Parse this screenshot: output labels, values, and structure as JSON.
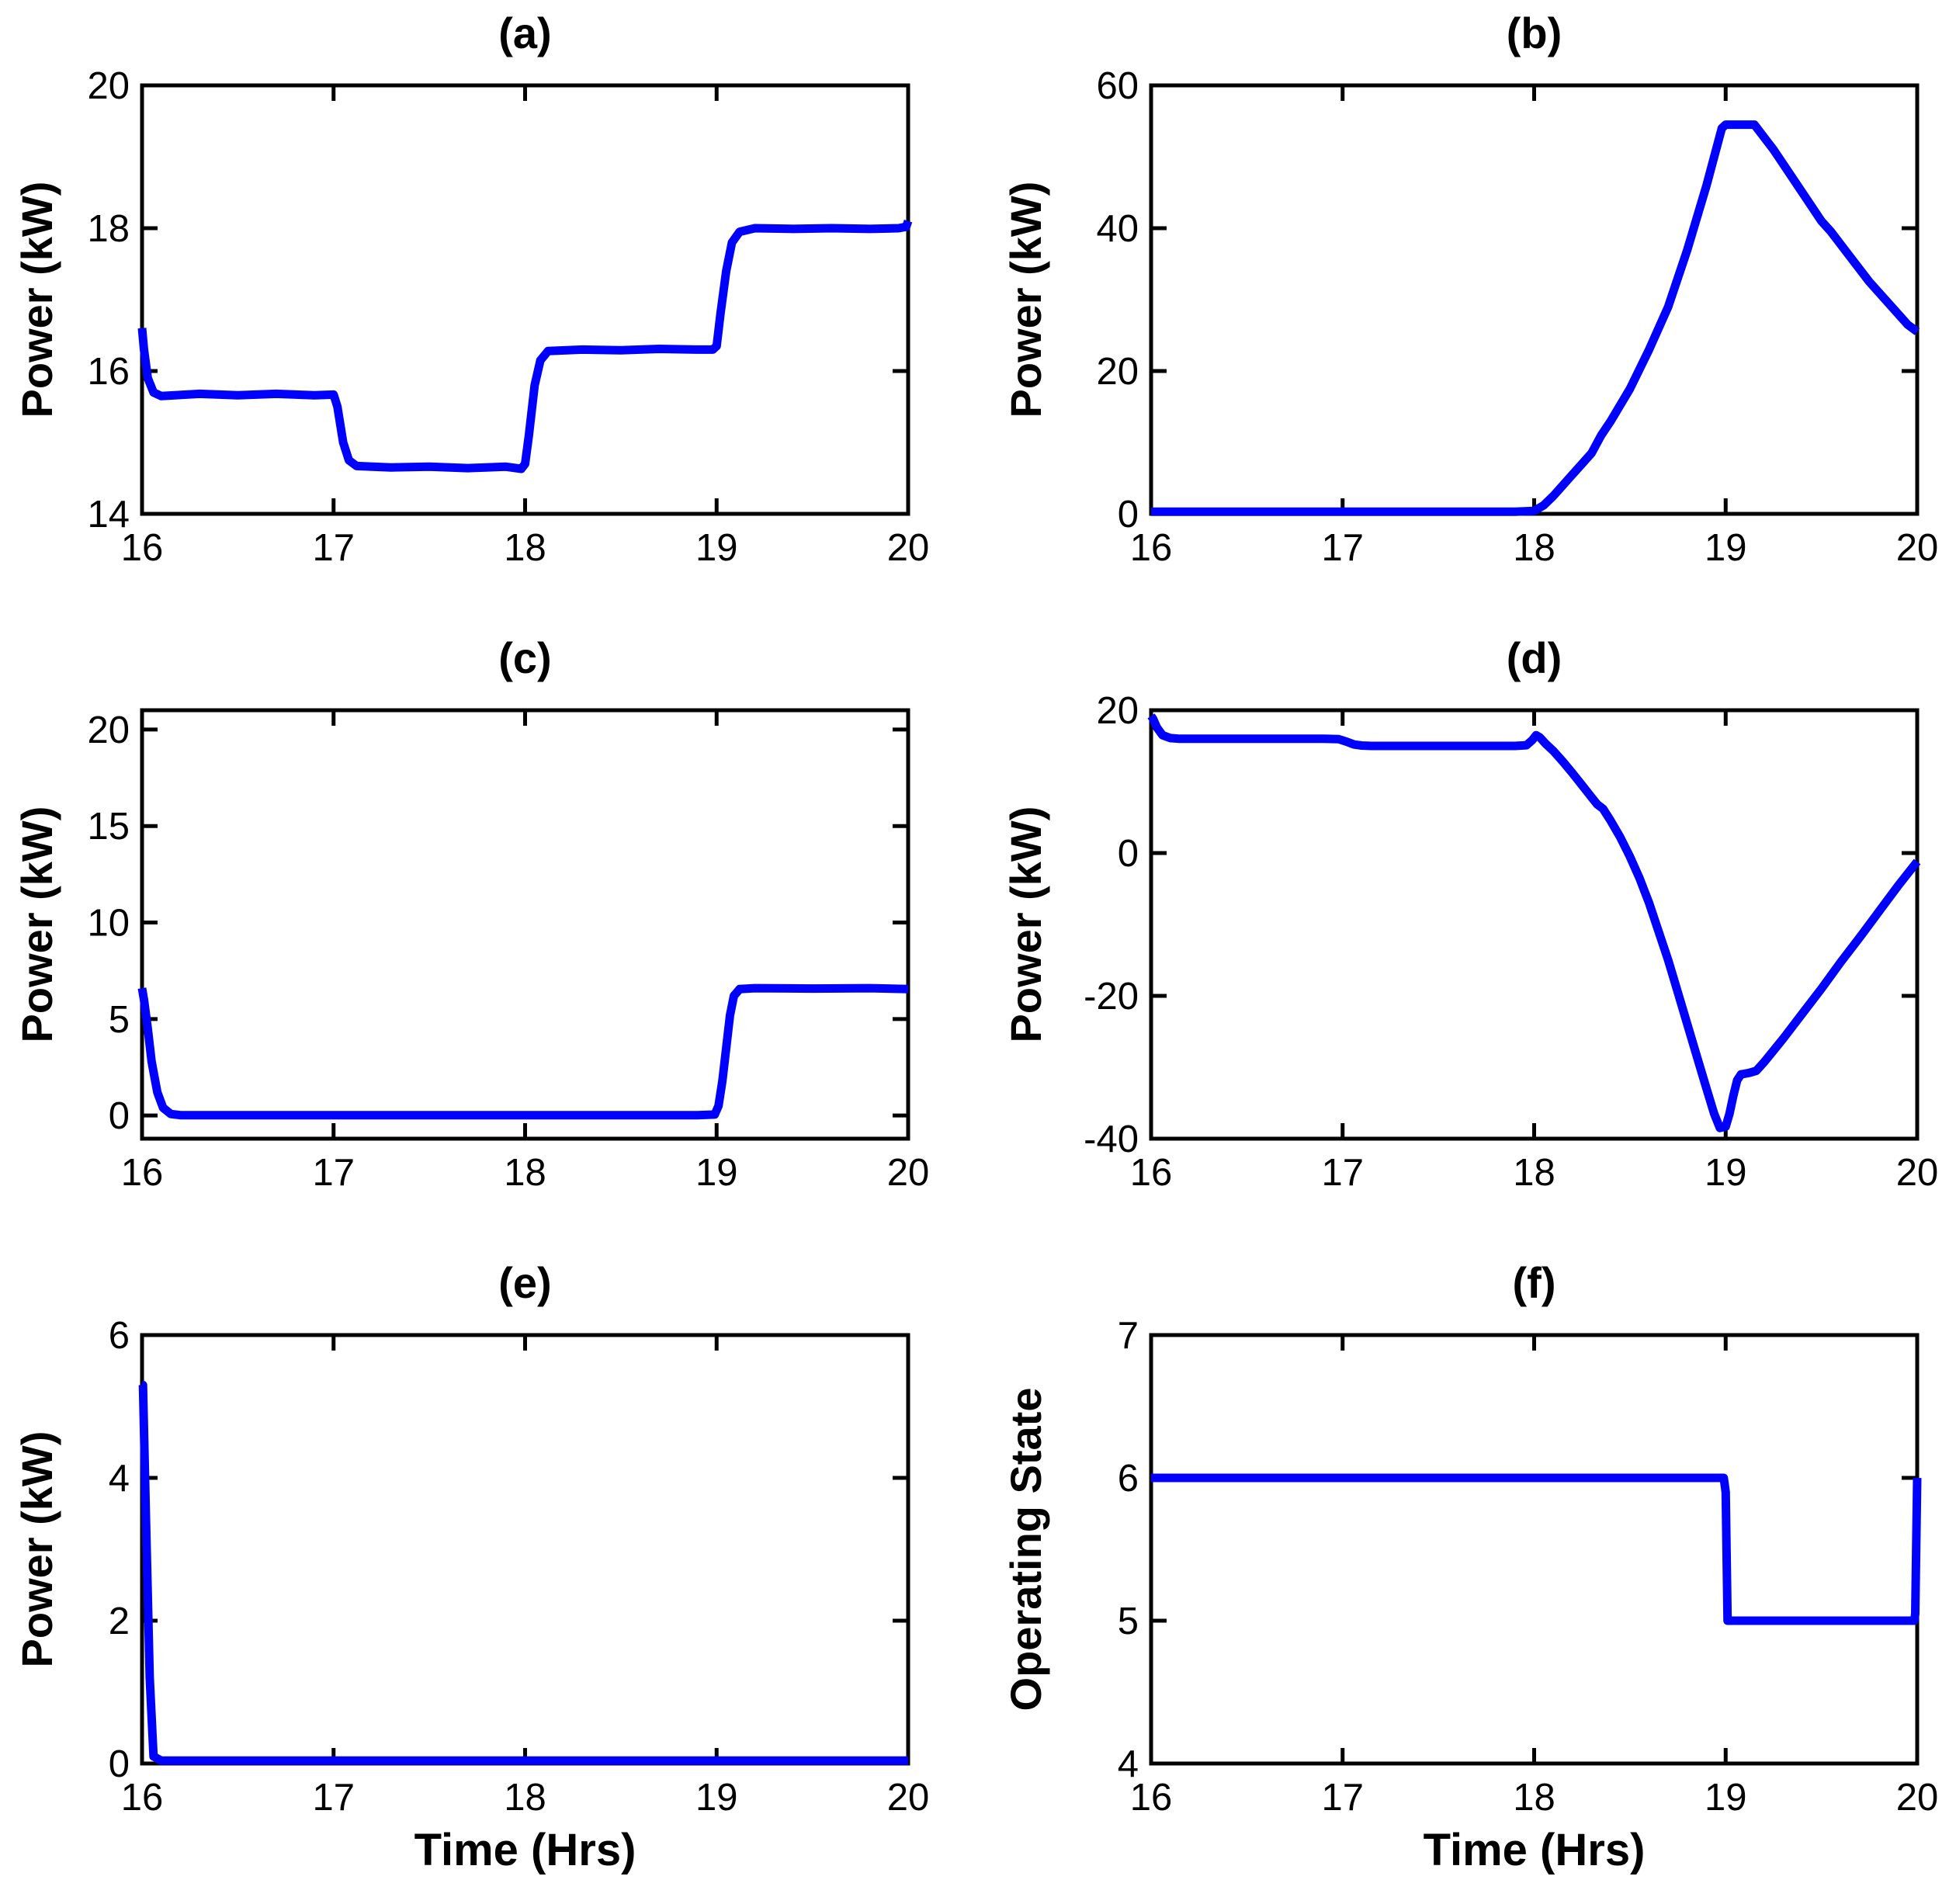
{
  "figure": {
    "background_color": "#ffffff",
    "line_color": "#0000ff",
    "axis_color": "#000000",
    "x_tick_labels": [
      "16",
      "17",
      "18",
      "19",
      "20"
    ]
  },
  "chart_data": [
    {
      "type": "line",
      "title": "(a)",
      "ylabel": "Power (kW)",
      "xlabel": "",
      "xlim": [
        16,
        20
      ],
      "ylim": [
        14,
        20
      ],
      "xticks": [
        16,
        17,
        18,
        19,
        20
      ],
      "yticks": [
        14,
        16,
        18,
        20
      ],
      "legend": "none",
      "grid": false,
      "points": [
        [
          16.0,
          16.6
        ],
        [
          16.01,
          16.3
        ],
        [
          16.03,
          15.9
        ],
        [
          16.06,
          15.7
        ],
        [
          16.1,
          15.65
        ],
        [
          16.3,
          15.68
        ],
        [
          16.5,
          15.66
        ],
        [
          16.7,
          15.68
        ],
        [
          16.9,
          15.66
        ],
        [
          17.0,
          15.67
        ],
        [
          17.02,
          15.5
        ],
        [
          17.05,
          15.0
        ],
        [
          17.08,
          14.75
        ],
        [
          17.12,
          14.67
        ],
        [
          17.3,
          14.65
        ],
        [
          17.5,
          14.66
        ],
        [
          17.7,
          14.64
        ],
        [
          17.9,
          14.66
        ],
        [
          17.98,
          14.63
        ],
        [
          18.0,
          14.7
        ],
        [
          18.02,
          15.1
        ],
        [
          18.05,
          15.8
        ],
        [
          18.08,
          16.15
        ],
        [
          18.12,
          16.28
        ],
        [
          18.3,
          16.3
        ],
        [
          18.5,
          16.29
        ],
        [
          18.7,
          16.31
        ],
        [
          18.9,
          16.3
        ],
        [
          18.98,
          16.3
        ],
        [
          19.0,
          16.35
        ],
        [
          19.02,
          16.8
        ],
        [
          19.05,
          17.4
        ],
        [
          19.08,
          17.8
        ],
        [
          19.12,
          17.95
        ],
        [
          19.2,
          18.0
        ],
        [
          19.4,
          17.99
        ],
        [
          19.6,
          18.0
        ],
        [
          19.8,
          17.99
        ],
        [
          19.95,
          18.0
        ],
        [
          19.99,
          18.02
        ],
        [
          20.0,
          18.1
        ]
      ]
    },
    {
      "type": "line",
      "title": "(b)",
      "ylabel": "Power (kW)",
      "xlabel": "",
      "xlim": [
        16,
        20
      ],
      "ylim": [
        0,
        60
      ],
      "xticks": [
        16,
        17,
        18,
        19,
        20
      ],
      "yticks": [
        0,
        20,
        40,
        60
      ],
      "legend": "none",
      "grid": false,
      "points": [
        [
          16.0,
          0.3
        ],
        [
          17.0,
          0.3
        ],
        [
          17.9,
          0.3
        ],
        [
          18.0,
          0.4
        ],
        [
          18.05,
          1.2
        ],
        [
          18.1,
          2.5
        ],
        [
          18.2,
          5.5
        ],
        [
          18.3,
          8.5
        ],
        [
          18.35,
          11.0
        ],
        [
          18.4,
          13.0
        ],
        [
          18.5,
          17.5
        ],
        [
          18.6,
          23.0
        ],
        [
          18.7,
          29.0
        ],
        [
          18.8,
          37.0
        ],
        [
          18.9,
          46.0
        ],
        [
          18.95,
          51.0
        ],
        [
          18.98,
          54.0
        ],
        [
          19.0,
          54.5
        ],
        [
          19.15,
          54.5
        ],
        [
          19.25,
          51.0
        ],
        [
          19.35,
          47.0
        ],
        [
          19.45,
          43.0
        ],
        [
          19.5,
          41.0
        ],
        [
          19.55,
          39.5
        ],
        [
          19.65,
          36.0
        ],
        [
          19.75,
          32.5
        ],
        [
          19.85,
          29.5
        ],
        [
          19.95,
          26.5
        ],
        [
          20.0,
          25.5
        ]
      ]
    },
    {
      "type": "line",
      "title": "(c)",
      "ylabel": "Power (kW)",
      "xlabel": "",
      "xlim": [
        16,
        20
      ],
      "ylim": [
        -1.2,
        21
      ],
      "xticks": [
        16,
        17,
        18,
        19,
        20
      ],
      "yticks": [
        0,
        5,
        10,
        15,
        20
      ],
      "legend": "none",
      "grid": false,
      "points": [
        [
          16.0,
          6.6
        ],
        [
          16.01,
          6.0
        ],
        [
          16.03,
          4.5
        ],
        [
          16.05,
          2.8
        ],
        [
          16.08,
          1.2
        ],
        [
          16.11,
          0.4
        ],
        [
          16.15,
          0.08
        ],
        [
          16.2,
          0.02
        ],
        [
          17.0,
          0.02
        ],
        [
          18.0,
          0.02
        ],
        [
          18.9,
          0.02
        ],
        [
          18.99,
          0.05
        ],
        [
          19.01,
          0.5
        ],
        [
          19.03,
          1.8
        ],
        [
          19.05,
          3.5
        ],
        [
          19.07,
          5.2
        ],
        [
          19.09,
          6.2
        ],
        [
          19.12,
          6.55
        ],
        [
          19.2,
          6.6
        ],
        [
          19.5,
          6.58
        ],
        [
          19.8,
          6.6
        ],
        [
          20.0,
          6.55
        ]
      ]
    },
    {
      "type": "line",
      "title": "(d)",
      "ylabel": "Power (kW)",
      "xlabel": "",
      "xlim": [
        16,
        20
      ],
      "ylim": [
        -40,
        20
      ],
      "xticks": [
        16,
        17,
        18,
        19,
        20
      ],
      "yticks": [
        -40,
        -20,
        0,
        20
      ],
      "legend": "none",
      "grid": false,
      "points": [
        [
          16.0,
          19.2
        ],
        [
          16.01,
          18.8
        ],
        [
          16.03,
          17.6
        ],
        [
          16.06,
          16.5
        ],
        [
          16.1,
          16.1
        ],
        [
          16.15,
          16.0
        ],
        [
          16.5,
          16.0
        ],
        [
          16.9,
          16.0
        ],
        [
          16.98,
          15.95
        ],
        [
          17.02,
          15.6
        ],
        [
          17.06,
          15.2
        ],
        [
          17.1,
          15.05
        ],
        [
          17.15,
          15.0
        ],
        [
          17.5,
          15.0
        ],
        [
          17.9,
          15.0
        ],
        [
          17.96,
          15.1
        ],
        [
          17.99,
          15.8
        ],
        [
          18.01,
          16.5
        ],
        [
          18.03,
          16.2
        ],
        [
          18.06,
          15.3
        ],
        [
          18.1,
          14.3
        ],
        [
          18.15,
          12.8
        ],
        [
          18.2,
          11.2
        ],
        [
          18.25,
          9.5
        ],
        [
          18.3,
          7.8
        ],
        [
          18.33,
          6.8
        ],
        [
          18.36,
          6.2
        ],
        [
          18.4,
          4.5
        ],
        [
          18.45,
          2.2
        ],
        [
          18.5,
          -0.5
        ],
        [
          18.55,
          -3.5
        ],
        [
          18.6,
          -7.0
        ],
        [
          18.65,
          -11.0
        ],
        [
          18.7,
          -15.0
        ],
        [
          18.75,
          -19.5
        ],
        [
          18.8,
          -24.0
        ],
        [
          18.85,
          -28.5
        ],
        [
          18.9,
          -33.0
        ],
        [
          18.94,
          -36.5
        ],
        [
          18.97,
          -38.5
        ],
        [
          19.0,
          -38.3
        ],
        [
          19.02,
          -36.5
        ],
        [
          19.04,
          -34.0
        ],
        [
          19.06,
          -31.8
        ],
        [
          19.08,
          -31.0
        ],
        [
          19.12,
          -30.8
        ],
        [
          19.16,
          -30.5
        ],
        [
          19.2,
          -29.3
        ],
        [
          19.3,
          -26.0
        ],
        [
          19.4,
          -22.5
        ],
        [
          19.5,
          -19.0
        ],
        [
          19.6,
          -15.3
        ],
        [
          19.7,
          -11.8
        ],
        [
          19.8,
          -8.2
        ],
        [
          19.9,
          -4.6
        ],
        [
          20.0,
          -1.2
        ]
      ]
    },
    {
      "type": "line",
      "title": "(e)",
      "ylabel": "Power (kW)",
      "xlabel": "Time (Hrs)",
      "xlim": [
        16,
        20
      ],
      "ylim": [
        0,
        6
      ],
      "xticks": [
        16,
        17,
        18,
        19,
        20
      ],
      "yticks": [
        0,
        2,
        4,
        6
      ],
      "legend": "none",
      "grid": false,
      "points": [
        [
          16.0,
          5.3
        ],
        [
          16.005,
          5.3
        ],
        [
          16.02,
          3.5
        ],
        [
          16.04,
          1.2
        ],
        [
          16.06,
          0.1
        ],
        [
          16.1,
          0.04
        ],
        [
          17.0,
          0.04
        ],
        [
          18.0,
          0.04
        ],
        [
          19.0,
          0.04
        ],
        [
          20.0,
          0.04
        ]
      ]
    },
    {
      "type": "line",
      "title": "(f)",
      "ylabel": "Operating State",
      "xlabel": "Time (Hrs)",
      "xlim": [
        16,
        20
      ],
      "ylim": [
        4,
        7
      ],
      "xticks": [
        16,
        17,
        18,
        19,
        20
      ],
      "yticks": [
        4,
        5,
        6,
        7
      ],
      "legend": "none",
      "grid": false,
      "points": [
        [
          16.0,
          6.0
        ],
        [
          17.0,
          6.0
        ],
        [
          18.0,
          6.0
        ],
        [
          18.99,
          6.0
        ],
        [
          19.0,
          5.9
        ],
        [
          19.01,
          5.0
        ],
        [
          19.5,
          5.0
        ],
        [
          19.985,
          5.0
        ],
        [
          19.99,
          5.05
        ],
        [
          20.0,
          6.0
        ]
      ]
    }
  ]
}
